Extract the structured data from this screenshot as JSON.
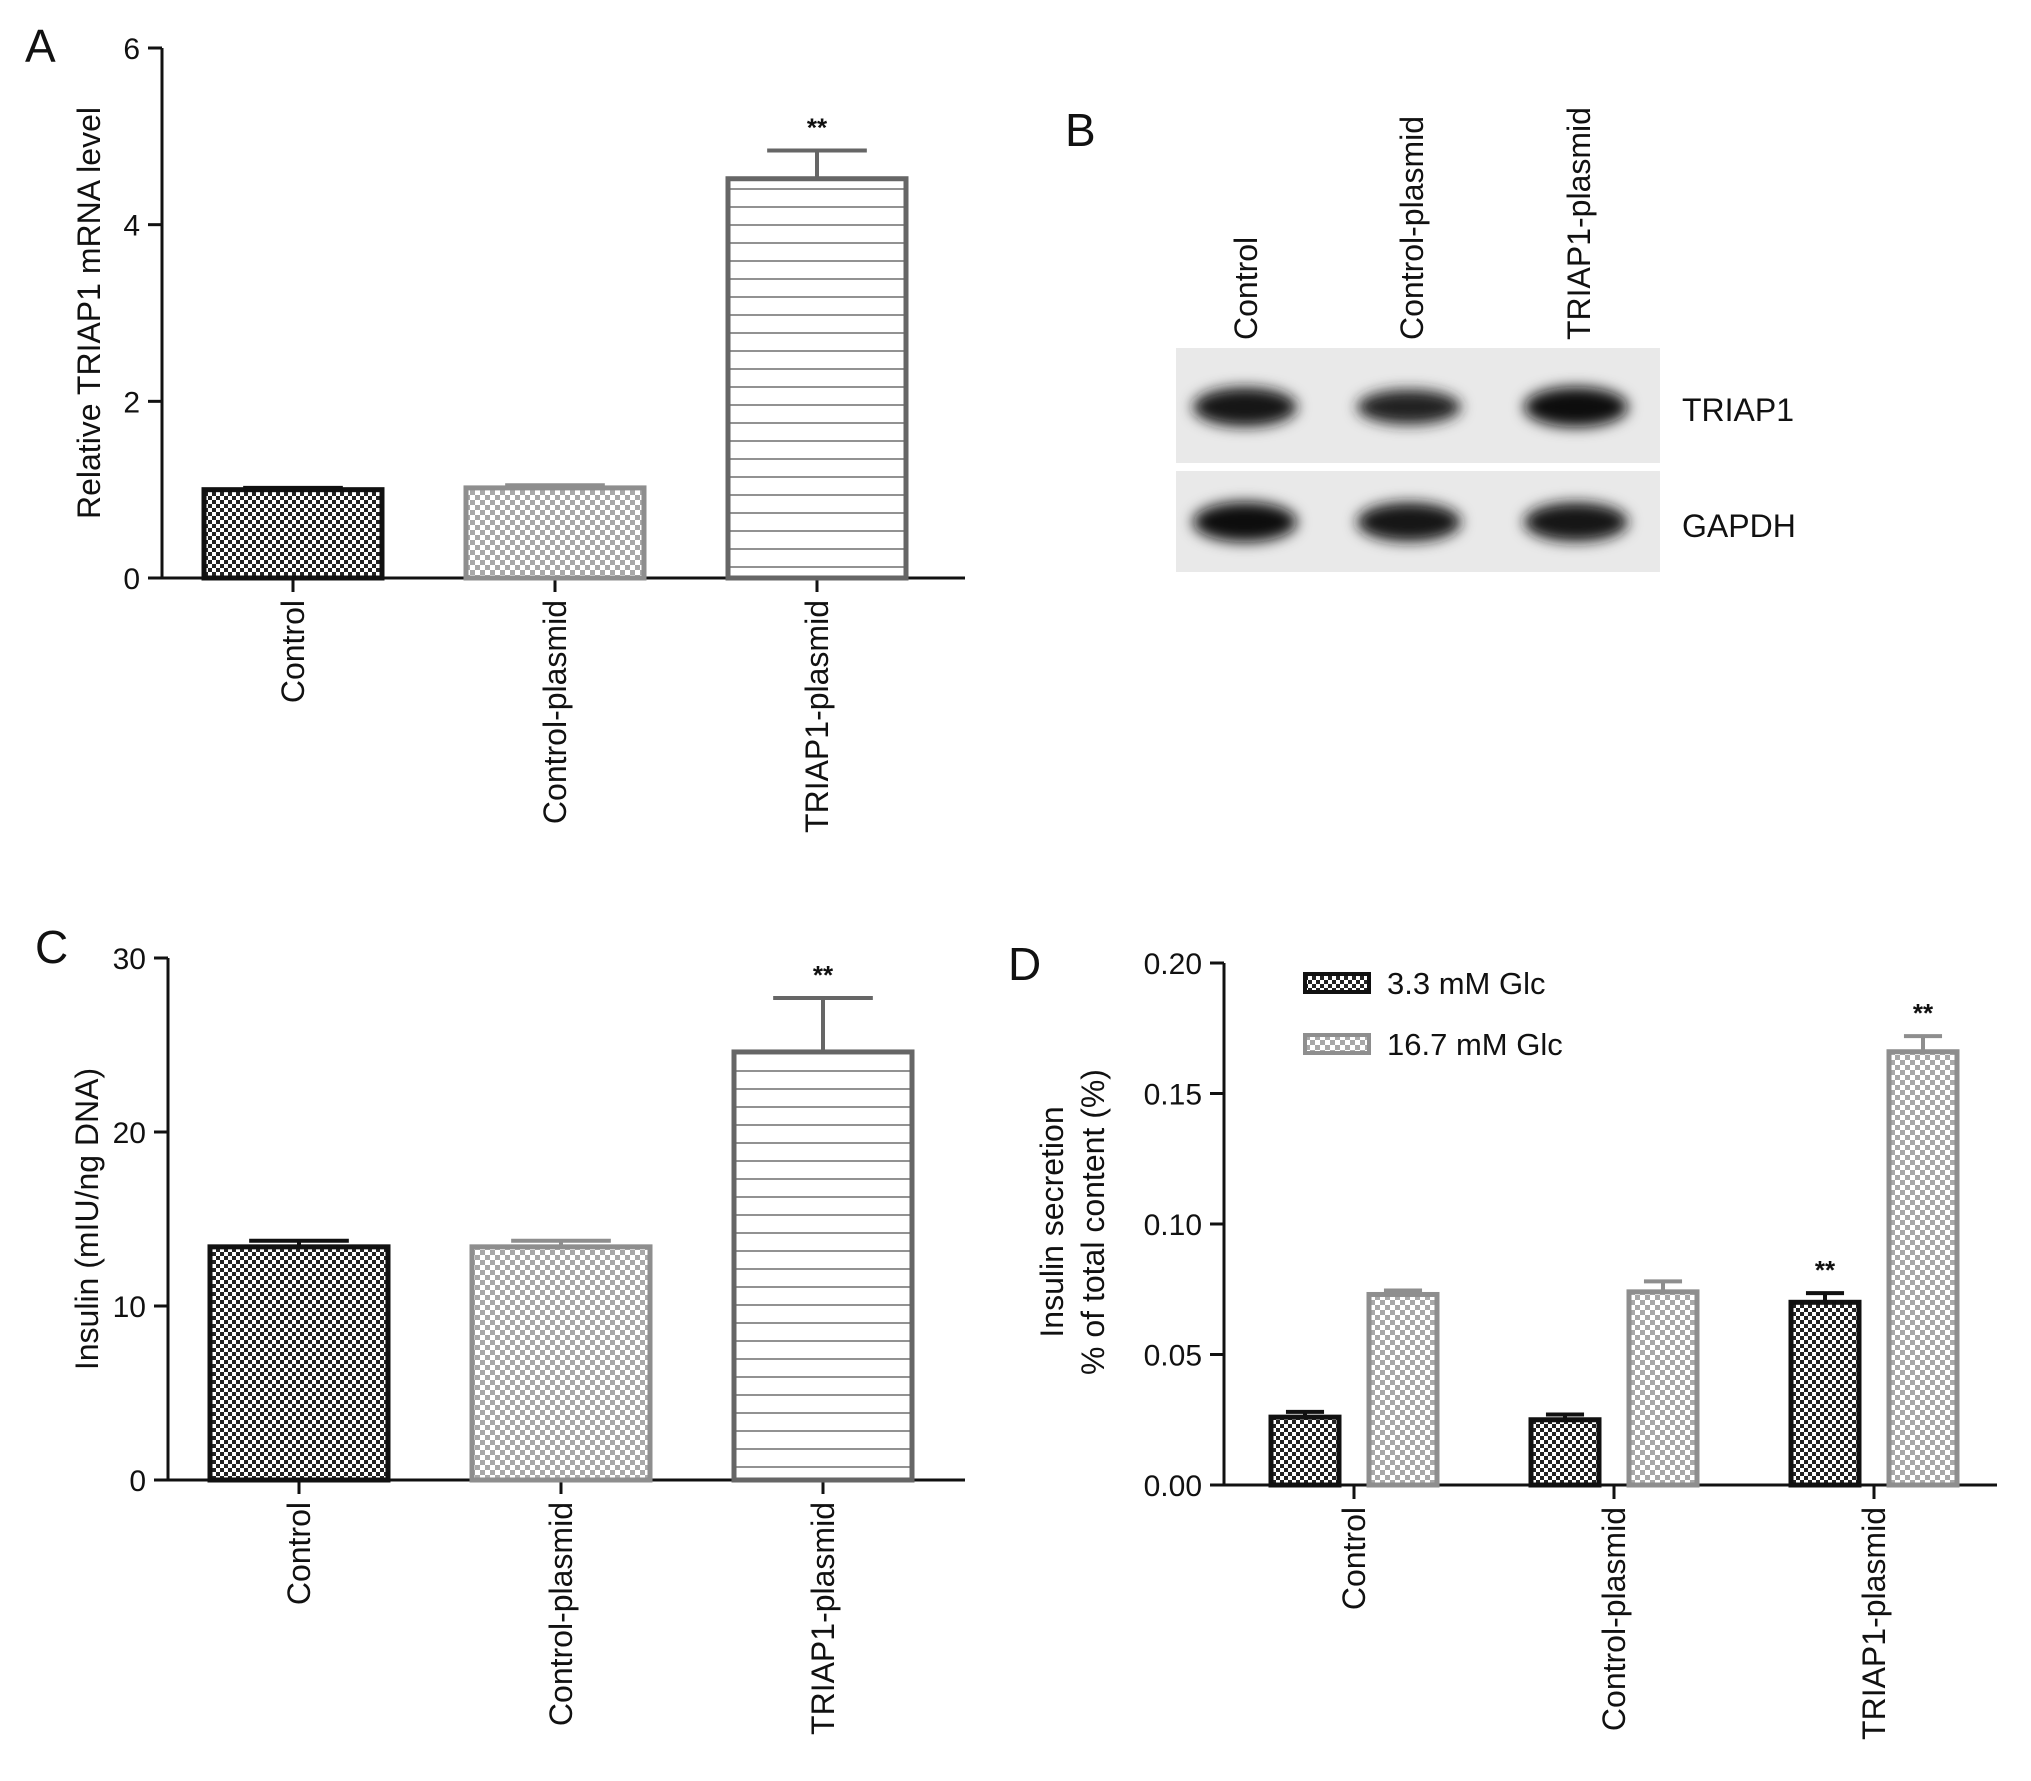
{
  "panels": {
    "A": "A",
    "B": "B",
    "C": "C",
    "D": "D"
  },
  "blot": {
    "lane_labels": [
      "Control",
      "Control-plasmid",
      "TRIAP1-plasmid"
    ],
    "row_labels": [
      "TRIAP1",
      "GAPDH"
    ],
    "band_intensity": {
      "TRIAP1": [
        0.85,
        0.6,
        0.9
      ],
      "GAPDH": [
        0.9,
        0.85,
        0.85
      ]
    }
  },
  "chart_data": [
    {
      "panel": "A",
      "type": "bar",
      "categories": [
        "Control",
        "Control-plasmid",
        "TRIAP1-plasmid"
      ],
      "values": [
        1.0,
        1.02,
        4.52
      ],
      "errors": [
        0.02,
        0.03,
        0.32
      ],
      "annotations": [
        "",
        "",
        "**"
      ],
      "patterns": [
        "dark-check",
        "light-check",
        "hlines"
      ],
      "ylabel": "Relative TRIAP1 mRNA level",
      "ylim": [
        0,
        6
      ],
      "yticks": [
        0,
        2,
        4,
        6
      ],
      "ytick_labels": [
        "0",
        "2",
        "4",
        "6"
      ]
    },
    {
      "panel": "C",
      "type": "bar",
      "categories": [
        "Control",
        "Control-plasmid",
        "TRIAP1-plasmid"
      ],
      "values": [
        13.4,
        13.4,
        24.6
      ],
      "errors": [
        0.35,
        0.35,
        3.1
      ],
      "annotations": [
        "",
        "",
        "**"
      ],
      "patterns": [
        "dark-check",
        "light-check",
        "hlines"
      ],
      "ylabel": "Insulin (mIU/ng DNA)",
      "ylim": [
        0,
        30
      ],
      "yticks": [
        0,
        10,
        20,
        30
      ],
      "ytick_labels": [
        "0",
        "10",
        "20",
        "30"
      ]
    },
    {
      "panel": "D",
      "type": "bar",
      "categories": [
        "Control",
        "Control-plasmid",
        "TRIAP1-plasmid"
      ],
      "series": [
        {
          "name": "3.3 mM Glc",
          "pattern": "dark-check",
          "values": [
            0.026,
            0.025,
            0.07
          ],
          "errors": [
            0.002,
            0.002,
            0.0035
          ],
          "annotations": [
            "",
            "",
            "**"
          ]
        },
        {
          "name": "16.7 mM Glc",
          "pattern": "light-check",
          "values": [
            0.073,
            0.074,
            0.166
          ],
          "errors": [
            0.0015,
            0.004,
            0.006
          ],
          "annotations": [
            "",
            "",
            "**"
          ]
        }
      ],
      "ylabel": [
        "Insulin secretion",
        "% of total content (%)"
      ],
      "ylim": [
        0,
        0.2
      ],
      "yticks": [
        0,
        0.05,
        0.1,
        0.15,
        0.2
      ],
      "ytick_labels": [
        "0.00",
        "0.05",
        "0.10",
        "0.15",
        "0.20"
      ],
      "legend": "top-left"
    }
  ]
}
